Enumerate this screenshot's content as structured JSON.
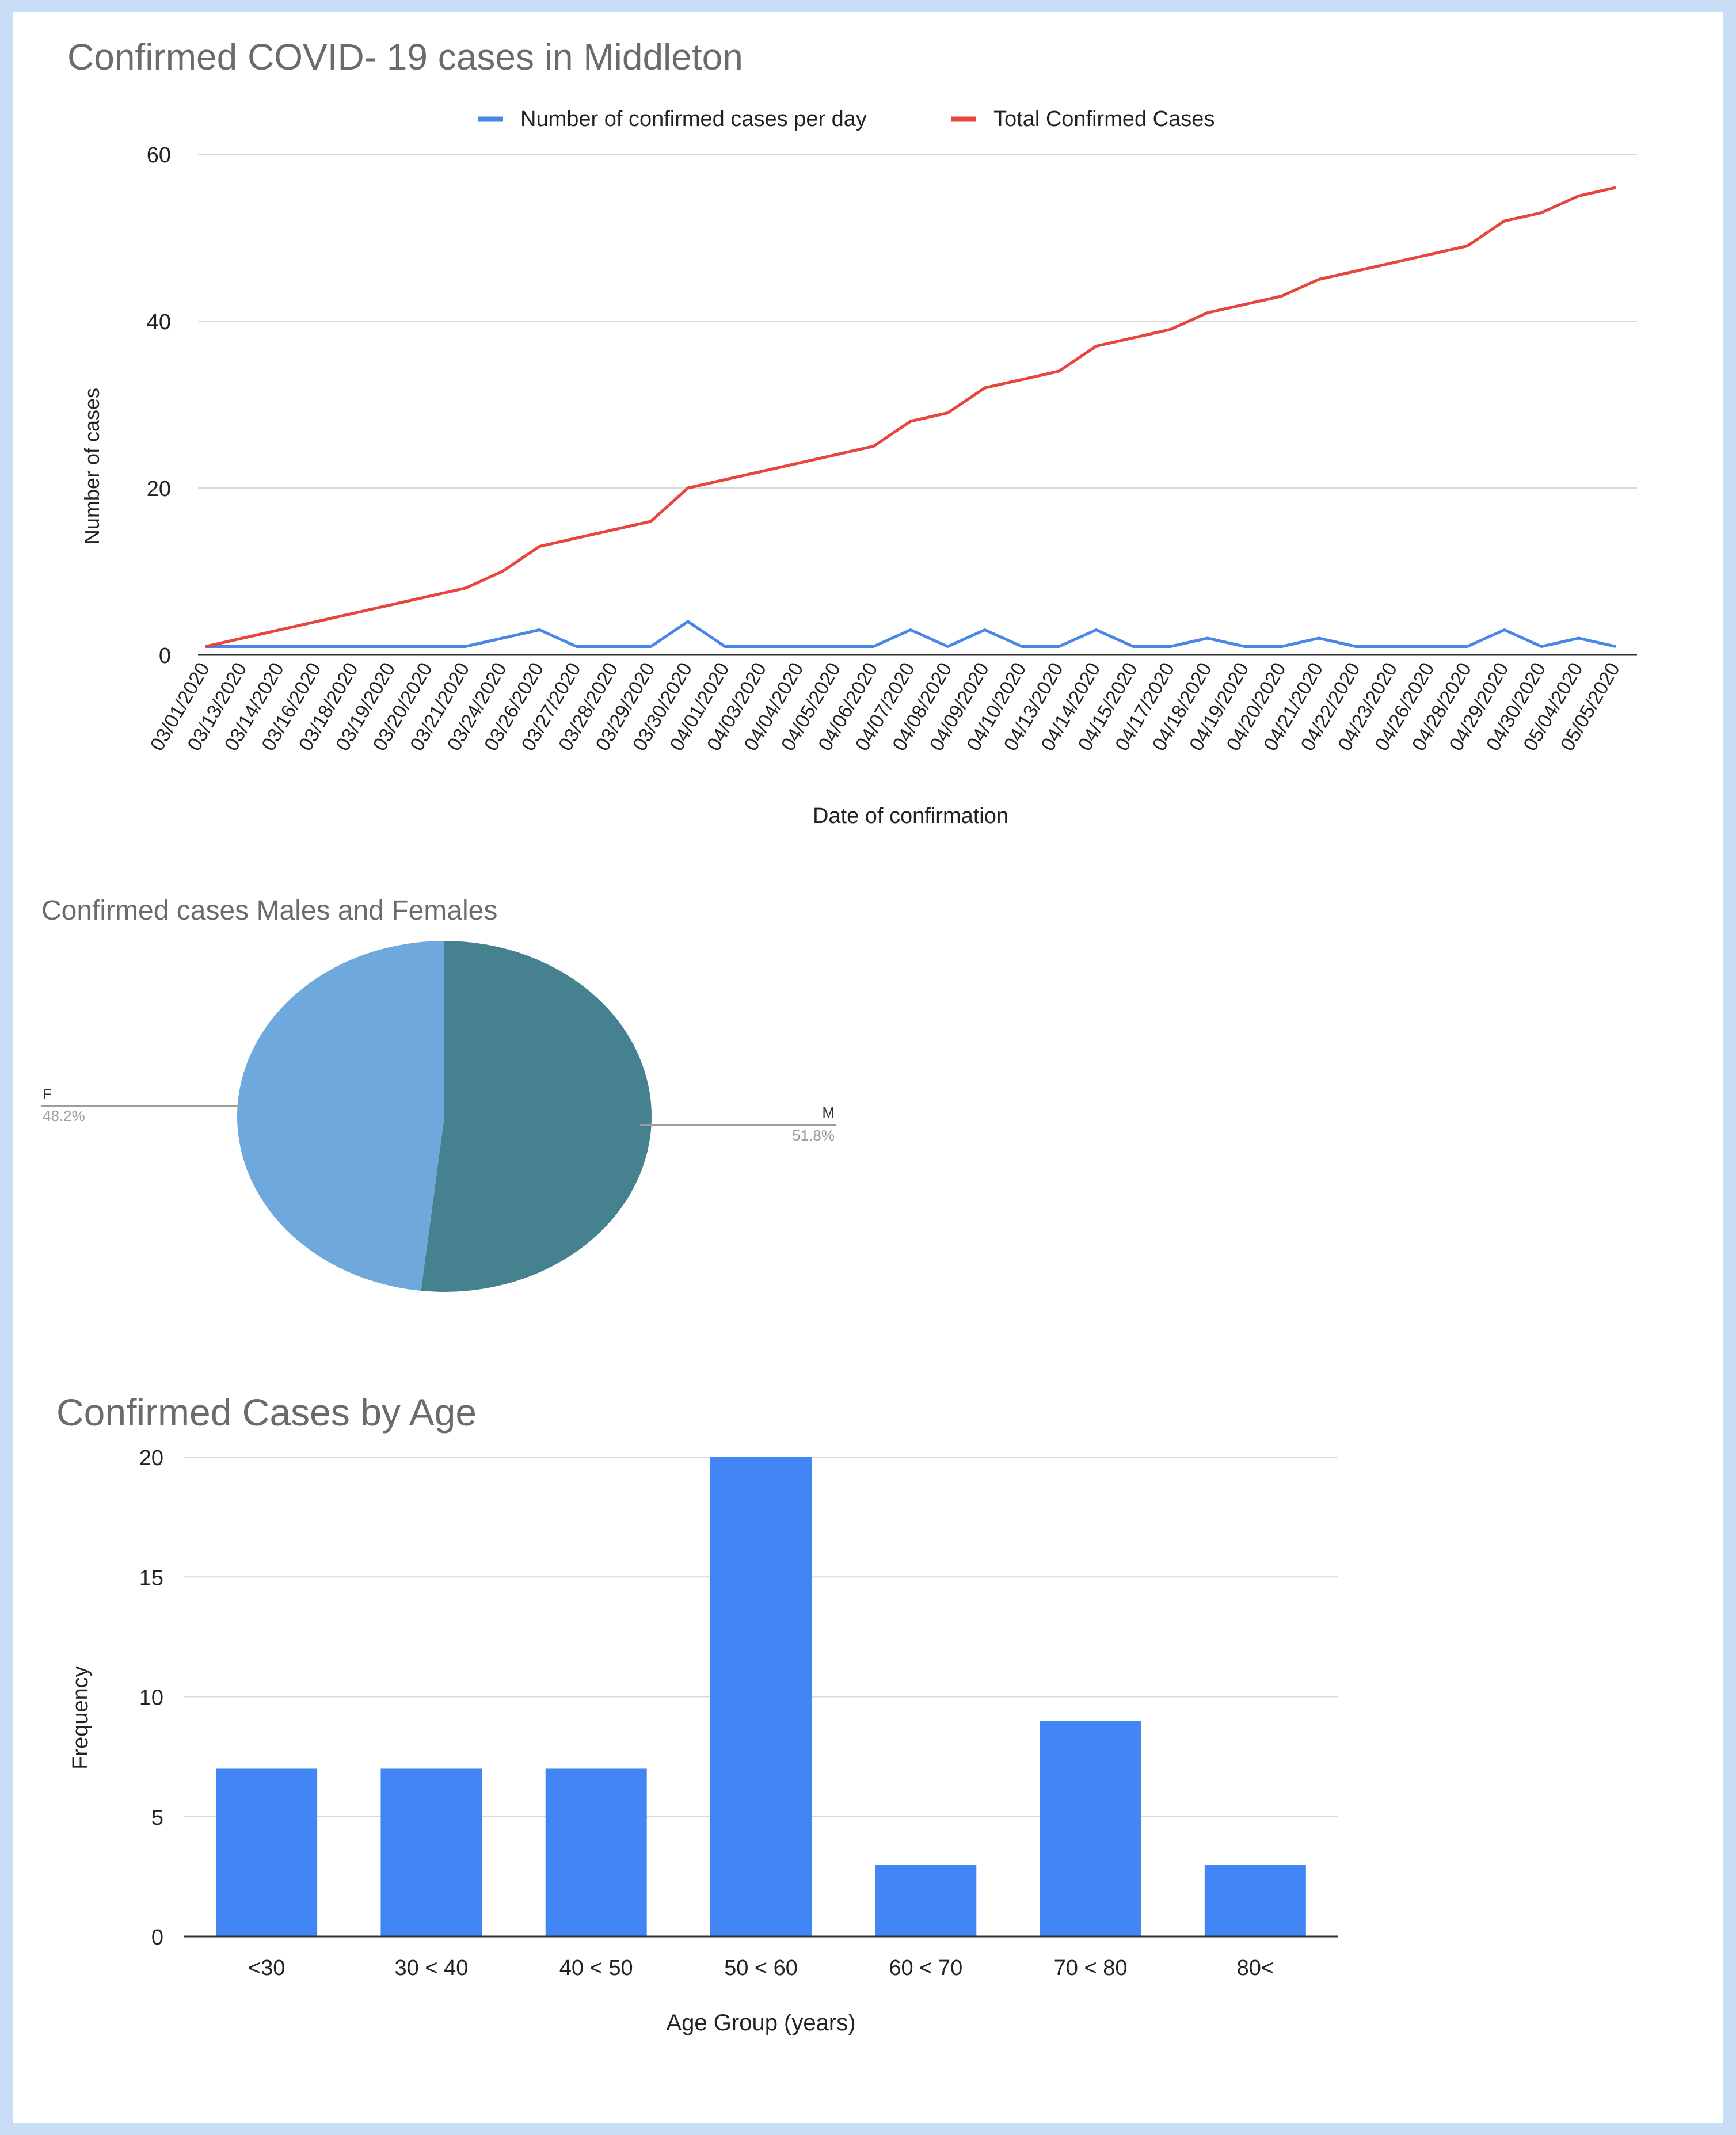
{
  "chart_data": [
    {
      "type": "line",
      "title": "Confirmed COVID- 19 cases in Middleton",
      "xlabel": "Date of confirmation",
      "ylabel": "Number of cases",
      "ylim": [
        0,
        60
      ],
      "yticks": [
        0,
        20,
        40,
        60
      ],
      "grid": true,
      "legend_position": "top",
      "x": [
        "03/01/2020",
        "03/13/2020",
        "03/14/2020",
        "03/16/2020",
        "03/18/2020",
        "03/19/2020",
        "03/20/2020",
        "03/21/2020",
        "03/24/2020",
        "03/26/2020",
        "03/27/2020",
        "03/28/2020",
        "03/29/2020",
        "03/30/2020",
        "04/01/2020",
        "04/03/2020",
        "04/04/2020",
        "04/05/2020",
        "04/06/2020",
        "04/07/2020",
        "04/08/2020",
        "04/09/2020",
        "04/10/2020",
        "04/13/2020",
        "04/14/2020",
        "04/15/2020",
        "04/17/2020",
        "04/18/2020",
        "04/19/2020",
        "04/20/2020",
        "04/21/2020",
        "04/22/2020",
        "04/23/2020",
        "04/26/2020",
        "04/28/2020",
        "04/29/2020",
        "04/30/2020",
        "05/04/2020",
        "05/05/2020"
      ],
      "series": [
        {
          "name": "Number of confirmed cases per day",
          "color": "#4a86e8",
          "values": [
            1,
            1,
            1,
            1,
            1,
            1,
            1,
            1,
            2,
            3,
            1,
            1,
            1,
            4,
            1,
            1,
            1,
            1,
            1,
            3,
            1,
            3,
            1,
            1,
            3,
            1,
            1,
            2,
            1,
            1,
            2,
            1,
            1,
            1,
            1,
            3,
            1,
            2,
            1
          ]
        },
        {
          "name": "Total Confirmed Cases",
          "color": "#e8453c",
          "values": [
            1,
            2,
            3,
            4,
            5,
            6,
            7,
            8,
            10,
            13,
            14,
            15,
            16,
            20,
            21,
            22,
            23,
            24,
            25,
            28,
            29,
            32,
            33,
            34,
            37,
            38,
            39,
            41,
            42,
            43,
            45,
            46,
            47,
            48,
            49,
            52,
            53,
            55,
            56
          ]
        }
      ]
    },
    {
      "type": "pie",
      "title": "Confirmed cases Males and Females",
      "slices": [
        {
          "label": "M",
          "pct_label": "51.8%",
          "value": 51.8,
          "color": "#45818e"
        },
        {
          "label": "F",
          "pct_label": "48.2%",
          "value": 48.2,
          "color": "#6fa8dc"
        }
      ]
    },
    {
      "type": "bar",
      "title": "Confirmed Cases by Age",
      "xlabel": "Age Group (years)",
      "ylabel": "Frequency",
      "ylim": [
        0,
        20
      ],
      "yticks": [
        0,
        5,
        10,
        15,
        20
      ],
      "grid": true,
      "color": "#4285f4",
      "categories": [
        "<30",
        "30 < 40",
        "40 < 50",
        "50 < 60",
        "60 < 70",
        "70 < 80",
        "80<"
      ],
      "values": [
        7,
        7,
        7,
        20,
        3,
        9,
        3
      ]
    }
  ]
}
